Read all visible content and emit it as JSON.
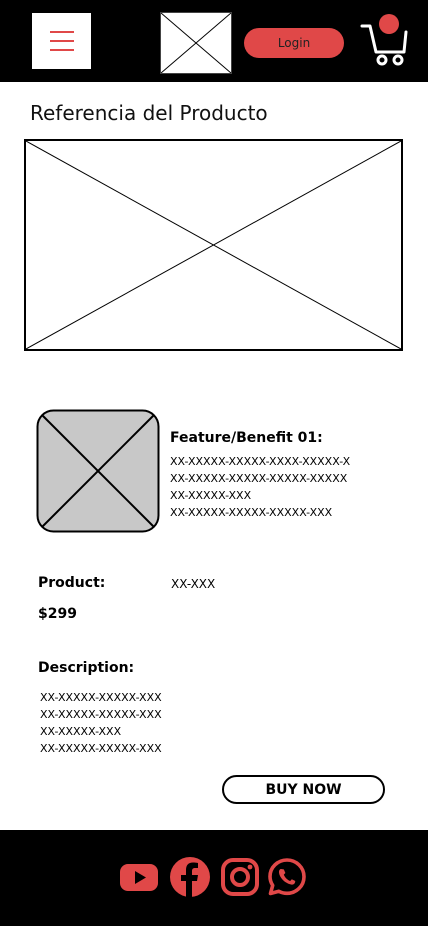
{
  "colors": {
    "accent": "#e04848",
    "header_bg": "#000000",
    "footer_bg": "#000000",
    "placeholder_fill": "#c8c8c8"
  },
  "header": {
    "menu_icon": "hamburger-icon",
    "logo_icon": "image-placeholder-icon",
    "login_label": "Login",
    "cart_icon": "shopping-cart-icon"
  },
  "page": {
    "title": "Referencia del Producto"
  },
  "feature": {
    "title": "Feature/Benefit 01:",
    "lines": [
      "XX-XXXXX-XXXXX-XXXX-XXXXX-X",
      "XX-XXXXX-XXXXX-XXXXX-XXXXX",
      "XX-XXXXX-XXX",
      "XX-XXXXX-XXXXX-XXXXX-XXX"
    ]
  },
  "product": {
    "label": "Product:",
    "code": "XX-XXX",
    "price": "$299"
  },
  "description": {
    "label": "Description:",
    "lines": [
      "XX-XXXXX-XXXXX-XXX",
      "XX-XXXXX-XXXXX-XXX",
      "XX-XXXXX-XXX",
      "XX-XXXXX-XXXXX-XXX"
    ]
  },
  "buy_label": "BUY NOW",
  "footer": {
    "social_icons": [
      "youtube-icon",
      "facebook-icon",
      "instagram-icon",
      "whatsapp-icon"
    ]
  }
}
